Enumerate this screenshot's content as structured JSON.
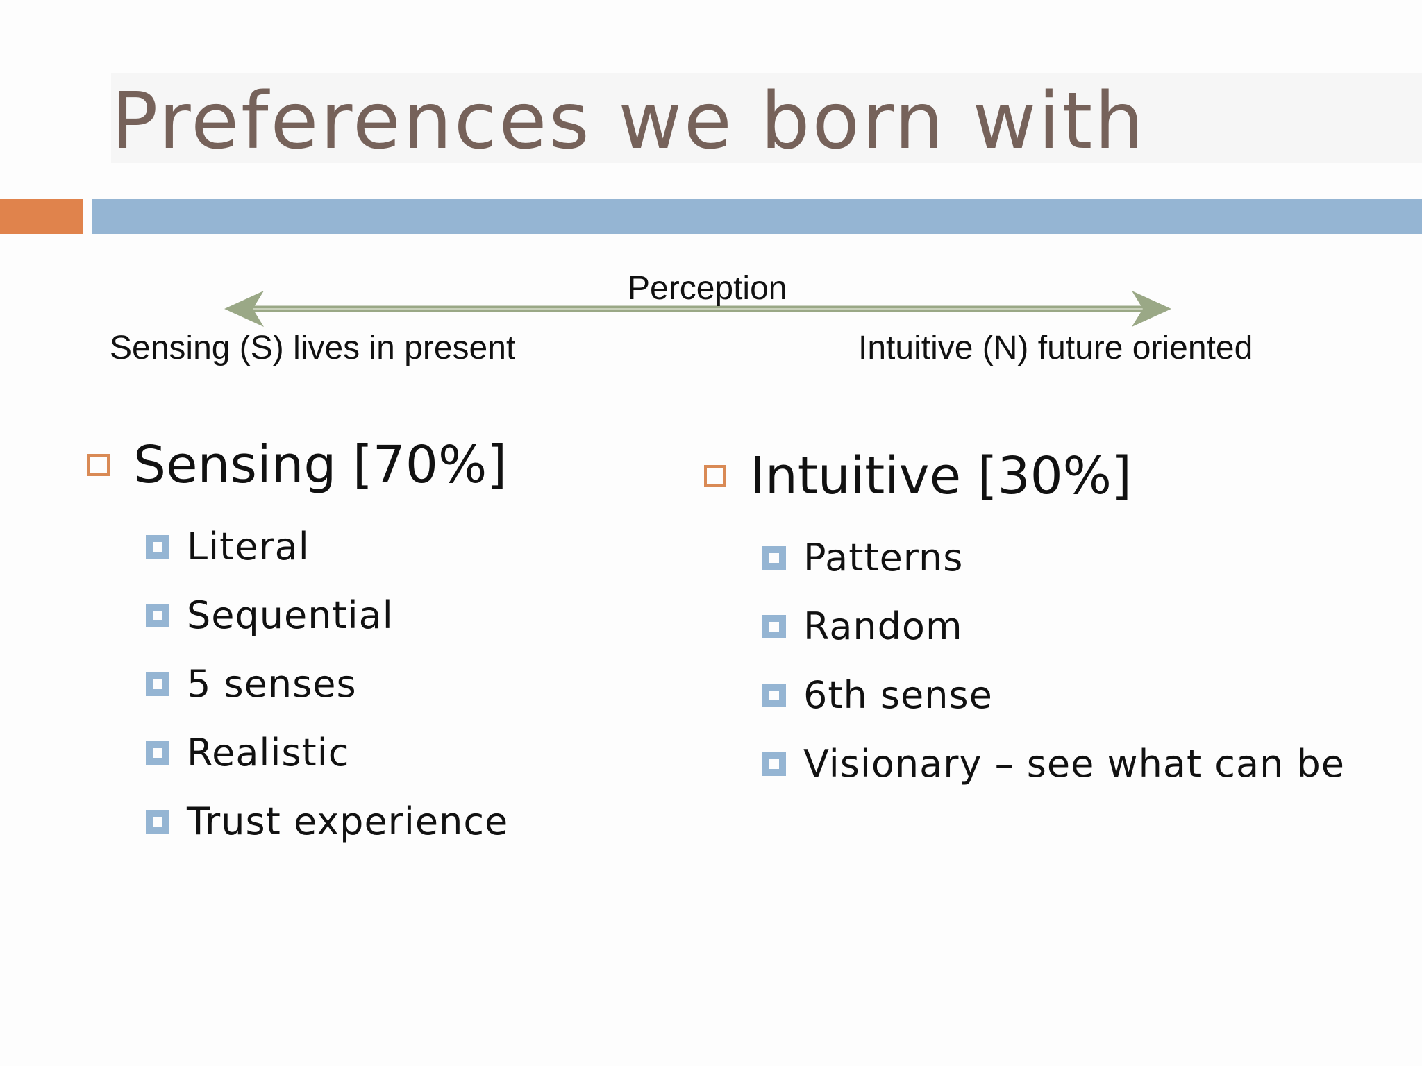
{
  "slide": {
    "title": "Preferences we born with",
    "perception": {
      "label": "Perception",
      "left_pole": "Sensing (S) lives in present",
      "right_pole": "Intuitive (N) future oriented"
    },
    "left_column": {
      "heading": "Sensing [70%]",
      "items": [
        "Literal",
        "Sequential",
        "5 senses",
        "Realistic",
        "Trust experience"
      ]
    },
    "right_column": {
      "heading": "Intuitive [30%]",
      "items": [
        "Patterns",
        "Random",
        "6th sense",
        "Visionary – see what can be"
      ]
    }
  },
  "colors": {
    "title": "#76625a",
    "accent_orange": "#e0834c",
    "accent_blue": "#95b5d3",
    "arrow": "#9aa886"
  }
}
